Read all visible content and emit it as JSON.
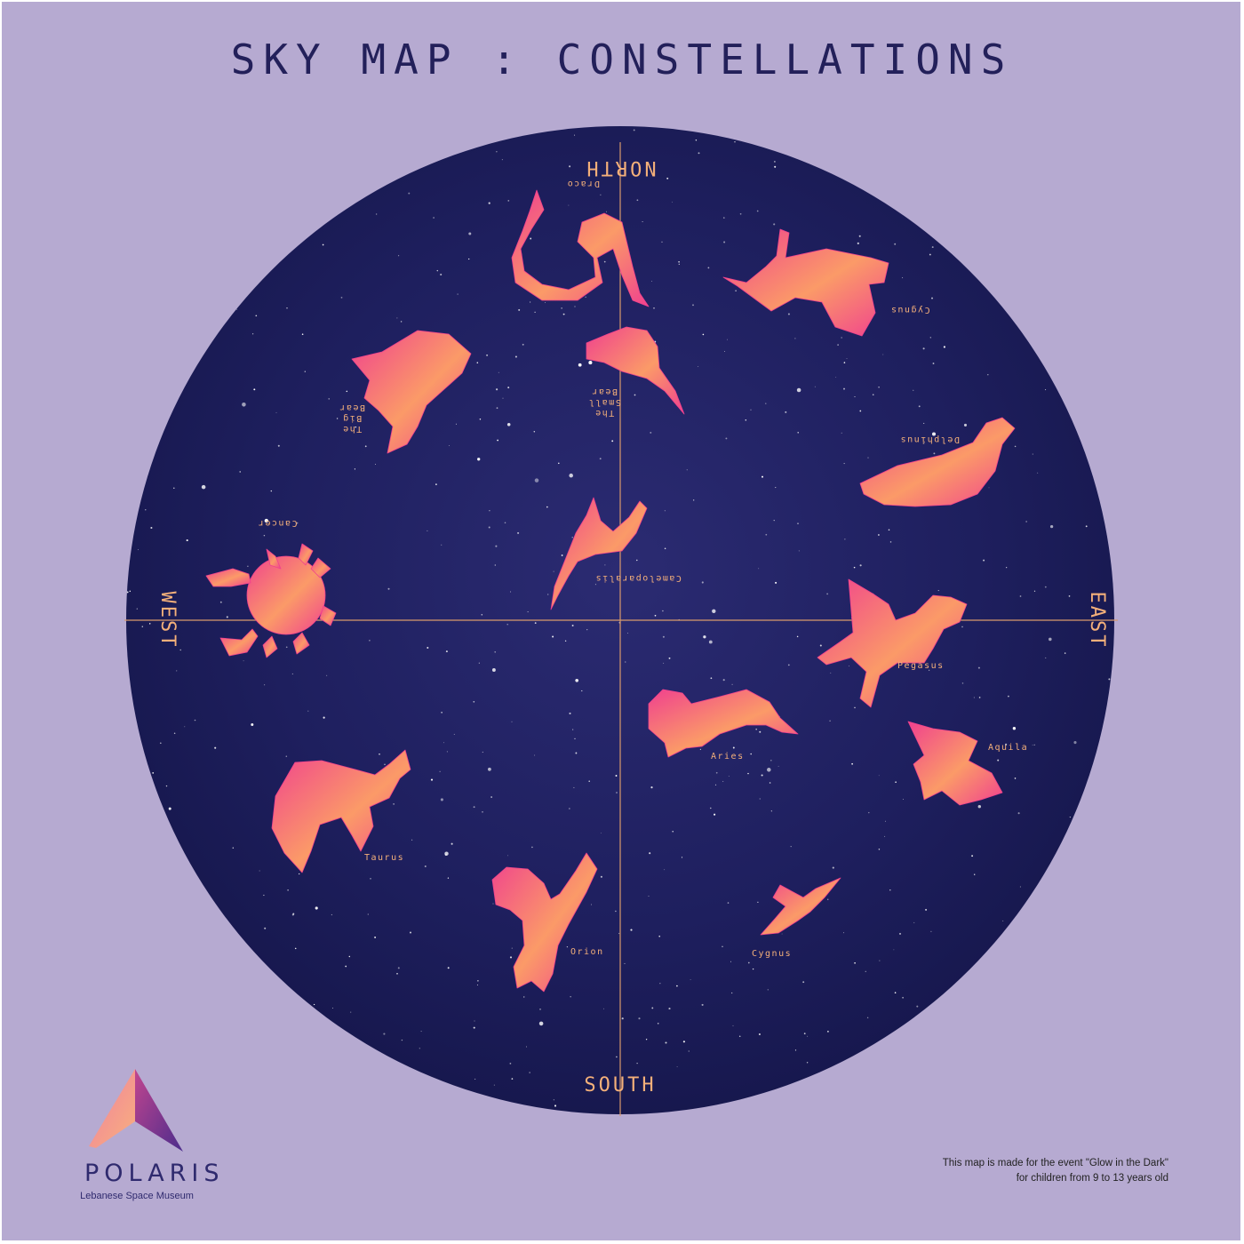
{
  "title": "SKY MAP : CONSTELLATIONS",
  "directions": {
    "north": "NORTH",
    "south": "SOUTH",
    "east": "EAST",
    "west": "WEST"
  },
  "constellations": [
    {
      "label": "Draco",
      "lines": [
        "Draco"
      ]
    },
    {
      "label": "Cygnus",
      "lines": [
        "Cygnus"
      ]
    },
    {
      "label": "The Big Bear",
      "lines": [
        "The",
        "Big",
        "Bear"
      ]
    },
    {
      "label": "The Small Bear",
      "lines": [
        "The",
        "Small",
        "Bear"
      ]
    },
    {
      "label": "Delphinus",
      "lines": [
        "Delphinus"
      ]
    },
    {
      "label": "Cameloparalis",
      "lines": [
        "Cameloparalis"
      ]
    },
    {
      "label": "Cancer",
      "lines": [
        "Cancer"
      ]
    },
    {
      "label": "Pegasus",
      "lines": [
        "Pegasus"
      ]
    },
    {
      "label": "Aries",
      "lines": [
        "Aries"
      ]
    },
    {
      "label": "Aquila",
      "lines": [
        "Aquila"
      ]
    },
    {
      "label": "Taurus",
      "lines": [
        "Taurus"
      ]
    },
    {
      "label": "Orion",
      "lines": [
        "Orion"
      ]
    },
    {
      "label": "Cygnus",
      "lines": [
        "Cygnus"
      ]
    }
  ],
  "logo": {
    "name": "POLARIS",
    "subtitle": "Lebanese Space Museum"
  },
  "footnote": {
    "line1": "This map is made for the event \"Glow in the Dark\"",
    "line2": "for children from 9 to 13 years old"
  },
  "colors": {
    "background": "#b6aad1",
    "sky": "#1d1f5c",
    "axis": "#d99a6c",
    "label": "#f4b07a",
    "figure_pink": "#f0418e",
    "figure_orange": "#fb9a68",
    "title": "#23205a"
  }
}
